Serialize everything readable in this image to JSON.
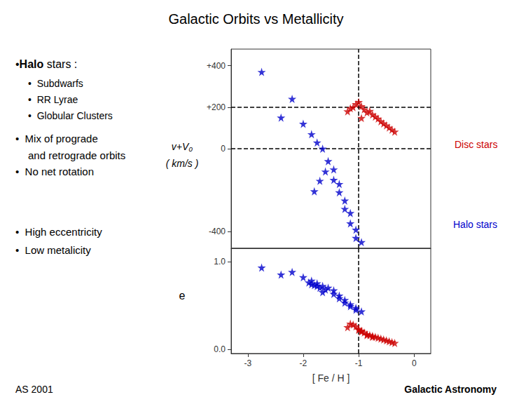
{
  "chart_data": [
    {
      "type": "scatter",
      "title": "Galactic Orbits vs Metallicity",
      "ylabel": "v+V₀\n( km/s )",
      "xlim": [
        -3.3,
        0.3
      ],
      "ylim": [
        -480,
        480
      ],
      "yticks": [
        -400,
        0,
        {
          "value": 200,
          "label": "+200"
        },
        {
          "value": 400,
          "label": "+400"
        }
      ],
      "tick_labels": "y",
      "grid": false,
      "vlines": [
        -1.0
      ],
      "hlines": [
        200,
        0
      ],
      "series": [
        {
          "color": "#0000cc",
          "marker": "star",
          "x": [
            -2.75,
            -2.2,
            -2.0,
            -1.85,
            -1.75,
            -1.65,
            -1.55,
            -1.45,
            -1.45,
            -1.35,
            -1.35,
            -1.25,
            -1.25,
            -1.15,
            -1.15,
            -1.05,
            -1.05,
            -0.95,
            -1.6,
            -1.7,
            -1.8,
            -2.4
          ],
          "values": [
            370,
            240,
            120,
            70,
            30,
            0,
            -60,
            -100,
            -150,
            -170,
            -210,
            -250,
            -290,
            -310,
            -360,
            -390,
            -430,
            -450,
            -110,
            -155,
            -205,
            150
          ]
        },
        {
          "color": "#cc0000",
          "marker": "star",
          "x": [
            -1.15,
            -1.05,
            -1.0,
            -0.95,
            -0.9,
            -0.85,
            -0.8,
            -0.75,
            -0.7,
            -0.65,
            -0.6,
            -0.55,
            -0.5,
            -0.45,
            -0.4,
            -0.35,
            -1.1,
            -0.95,
            -1.2
          ],
          "values": [
            195,
            215,
            225,
            205,
            190,
            175,
            182,
            165,
            155,
            145,
            132,
            122,
            112,
            102,
            92,
            82,
            200,
            148,
            180
          ]
        }
      ],
      "annotations": [
        {
          "text": "Disc stars",
          "color": "#cc0000"
        },
        {
          "text": "Halo stars",
          "color": "#0000cc"
        }
      ],
      "side_text": [
        [
          {
            "text": "•",
            "color": "#8b0000"
          },
          {
            "text": "Halo",
            "color": "#00008b",
            "weight": "bold"
          },
          {
            "text": " stars :"
          }
        ],
        [
          {
            "text": "•  Subdwarfs"
          }
        ],
        [
          {
            "text": "•  RR Lyrae"
          }
        ],
        [
          {
            "text": "•  Globular Clusters"
          }
        ],
        [
          {
            "text": "•  Mix of prograde"
          }
        ],
        [
          {
            "text": "and retrograde orbits"
          }
        ],
        [
          {
            "text": "•  No net rotation"
          }
        ],
        [
          {
            "text": "•  High eccentricity"
          }
        ],
        [
          {
            "text": "•  Low metalicity"
          }
        ]
      ],
      "footer": [
        {
          "text": "AS 2001"
        },
        {
          "text": "Galactic Astronomy",
          "weight": "bold"
        }
      ]
    },
    {
      "type": "scatter",
      "xlabel": "[ Fe / H ]",
      "ylabel": "e",
      "xlim": [
        -3.3,
        0.3
      ],
      "ylim": [
        -0.05,
        1.15
      ],
      "xticks": [
        -3,
        -2,
        -1,
        0
      ],
      "yticks": [
        {
          "value": 0.0,
          "label": "0.0"
        },
        {
          "value": 1.0,
          "label": "1.0"
        }
      ],
      "grid": false,
      "vlines": [
        -1.0
      ],
      "series": [
        {
          "color": "#0000cc",
          "marker": "star",
          "x": [
            -2.75,
            -2.2,
            -2.0,
            -1.85,
            -1.75,
            -1.65,
            -1.55,
            -1.45,
            -1.45,
            -1.35,
            -1.35,
            -1.25,
            -1.25,
            -1.15,
            -1.15,
            -1.05,
            -1.05,
            -0.95,
            -1.6,
            -1.7,
            -1.8,
            -2.4,
            -1.9,
            -1.85,
            -1.75,
            -1.65
          ],
          "values": [
            0.93,
            0.88,
            0.82,
            0.78,
            0.75,
            0.72,
            0.7,
            0.67,
            0.63,
            0.61,
            0.58,
            0.56,
            0.53,
            0.51,
            0.49,
            0.47,
            0.45,
            0.43,
            0.68,
            0.7,
            0.73,
            0.85,
            0.76,
            0.74,
            0.72,
            0.65
          ]
        },
        {
          "color": "#cc0000",
          "marker": "star",
          "x": [
            -1.15,
            -1.05,
            -1.0,
            -0.95,
            -0.9,
            -0.85,
            -0.8,
            -0.75,
            -0.7,
            -0.65,
            -0.6,
            -0.55,
            -0.5,
            -0.45,
            -0.4,
            -0.35,
            -1.1,
            -0.95,
            -1.2,
            -1.0,
            -0.85,
            -0.75
          ],
          "values": [
            0.29,
            0.26,
            0.23,
            0.21,
            0.19,
            0.17,
            0.16,
            0.15,
            0.14,
            0.13,
            0.12,
            0.11,
            0.1,
            0.09,
            0.08,
            0.07,
            0.28,
            0.2,
            0.25,
            0.22,
            0.16,
            0.14
          ]
        }
      ]
    }
  ]
}
